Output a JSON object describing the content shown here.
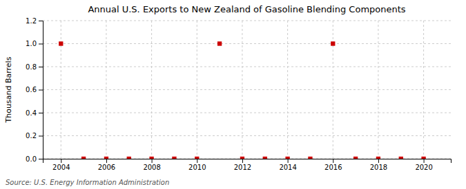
{
  "chart_data": {
    "type": "scatter",
    "title": "Annual U.S. Exports to New Zealand of Gasoline Blending Components",
    "ylabel": "Thousand Barrels",
    "source": "Source: U.S. Energy Information Administration",
    "x": [
      2004,
      2005,
      2006,
      2007,
      2008,
      2009,
      2010,
      2011,
      2012,
      2013,
      2014,
      2015,
      2016,
      2017,
      2018,
      2019,
      2020
    ],
    "values": [
      1.0,
      0.0,
      0.0,
      0.0,
      0.0,
      0.0,
      0.0,
      1.0,
      0.0,
      0.0,
      0.0,
      0.0,
      1.0,
      0.0,
      0.0,
      0.0,
      0.0
    ],
    "xlim": [
      2003.2,
      2021.2
    ],
    "ylim": [
      0.0,
      1.2
    ],
    "xticks": [
      2004,
      2006,
      2008,
      2010,
      2012,
      2014,
      2016,
      2018,
      2020
    ],
    "yticks": [
      {
        "value": 0.0,
        "label": "0.0"
      },
      0.2,
      0.4,
      0.6,
      0.8,
      {
        "value": 1.0,
        "label": "1.0"
      },
      1.2
    ],
    "color": "#cc0000",
    "marker": "square",
    "grid": true
  }
}
